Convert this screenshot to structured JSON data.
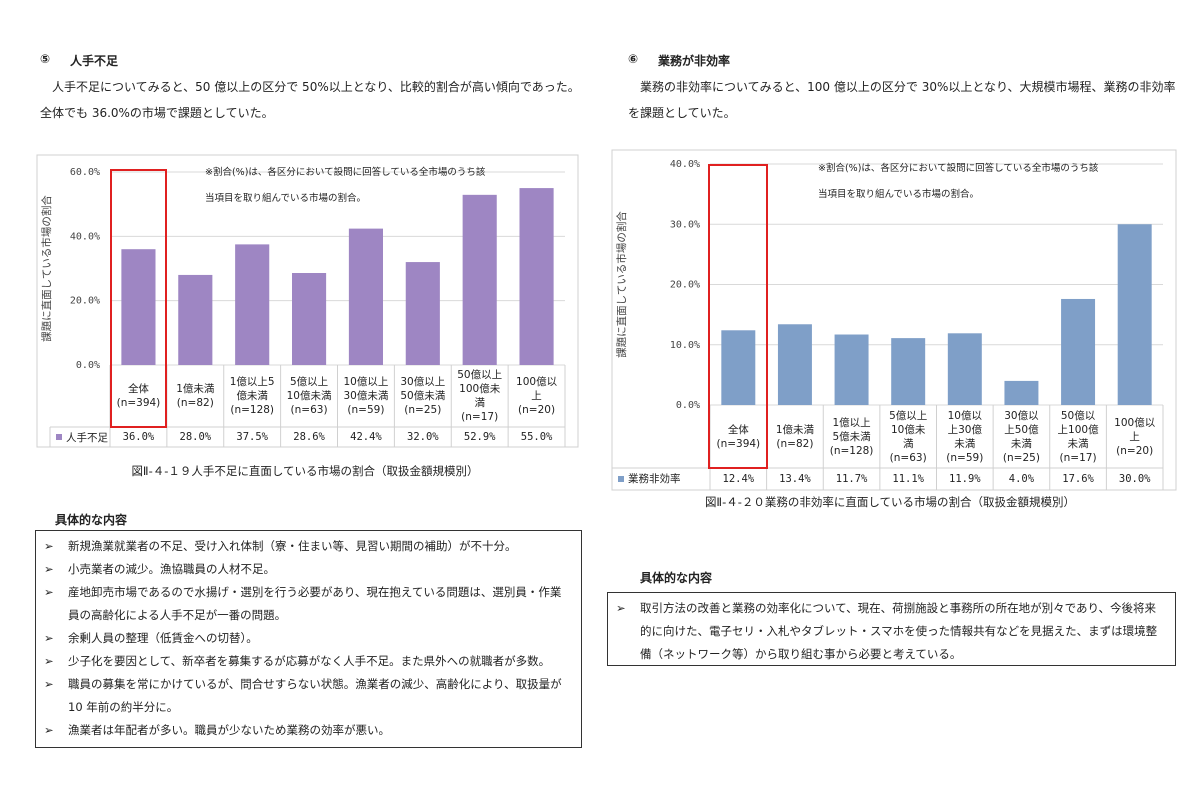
{
  "chart_data": [
    {
      "type": "bar",
      "y_label": "課題に直面している市場の割合",
      "annotation": "※割合(%)は、各区分において設問に回答している全市場のうち該当項目を取り組んでいる市場の割合。",
      "categories": [
        "全体\n(n=394)",
        "1億未満\n(n=82)",
        "1億以上5\n億未満\n(n=128)",
        "5億以上\n10億未満\n(n=63)",
        "10億以上\n30億未満\n(n=59)",
        "30億以上\n50億未満\n(n=25)",
        "50億以上\n100億未\n満\n(n=17)",
        "100億以\n上\n(n=20)"
      ],
      "series": [
        {
          "name": "人手不足",
          "color": "#9e86c3",
          "values": [
            36.0,
            28.0,
            37.5,
            28.6,
            42.4,
            32.0,
            52.9,
            55.0
          ],
          "value_labels": [
            "36.0%",
            "28.0%",
            "37.5%",
            "28.6%",
            "42.4%",
            "32.0%",
            "52.9%",
            "55.0%"
          ]
        }
      ],
      "ylim": [
        0,
        60
      ],
      "yticks": [
        {
          "value": 0,
          "label": "0.0%"
        },
        {
          "value": 20,
          "label": "20.0%"
        },
        {
          "value": 40,
          "label": "40.0%"
        },
        {
          "value": 60,
          "label": "60.0%"
        }
      ],
      "grid": true
    },
    {
      "type": "bar",
      "y_label": "課題に直面している市場の割合",
      "annotation": "※割合(%)は、各区分において設問に回答している全市場のうち該当項目を取り組んでいる市場の割合。",
      "categories": [
        "全体\n(n=394)",
        "1億未満\n(n=82)",
        "1億以上\n5億未満\n(n=128)",
        "5億以上\n10億未\n満\n(n=63)",
        "10億以\n上30億\n未満\n(n=59)",
        "30億以\n上50億\n未満\n(n=25)",
        "50億以\n上100億\n未満\n(n=17)",
        "100億以\n上\n(n=20)"
      ],
      "series": [
        {
          "name": "業務非効率",
          "color": "#7f9fc8",
          "values": [
            12.4,
            13.4,
            11.7,
            11.1,
            11.9,
            4.0,
            17.6,
            30.0
          ],
          "value_labels": [
            "12.4%",
            "13.4%",
            "11.7%",
            "11.1%",
            "11.9%",
            "4.0%",
            "17.6%",
            "30.0%"
          ]
        }
      ],
      "ylim": [
        0,
        40
      ],
      "yticks": [
        {
          "value": 0,
          "label": "0.0%"
        },
        {
          "value": 10,
          "label": "10.0%"
        },
        {
          "value": 20,
          "label": "20.0%"
        },
        {
          "value": 30,
          "label": "30.0%"
        },
        {
          "value": 40,
          "label": "40.0%"
        }
      ],
      "grid": true
    }
  ],
  "sections": [
    {
      "number": "⑤",
      "title": "人手不足",
      "paragraph": "人手不足についてみると、50 億以上の区分で 50%以上となり、比較的割合が高い傾向であった。全体でも 36.0%の市場で課題としていた。",
      "caption": "図Ⅱ-４-１９人手不足に直面している市場の割合（取扱金額規模別）",
      "list_title": "具体的な内容",
      "items": [
        "新規漁業就業者の不足、受け入れ体制（寮・住まい等、見習い期間の補助）が不十分。",
        "小売業者の減少。漁協職員の人材不足。",
        "産地卸売市場であるので水揚げ・選別を行う必要があり、現在抱えている問題は、選別員・作業員の高齢化による人手不足が一番の問題。",
        "余剰人員の整理（低賃金への切替）。",
        "少子化を要因として、新卒者を募集するが応募がなく人手不足。また県外への就職者が多数。",
        "職員の募集を常にかけているが、問合せすらない状態。漁業者の減少、高齢化により、取扱量が 10 年前の約半分に。",
        "漁業者は年配者が多い。職員が少ないため業務の効率が悪い。"
      ]
    },
    {
      "number": "⑥",
      "title": "業務が非効率",
      "paragraph": "業務の非効率についてみると、100 億以上の区分で 30%以上となり、大規模市場程、業務の非効率を課題としていた。",
      "caption": "図Ⅱ-４-２０業務の非効率に直面している市場の割合（取扱金額規模別）",
      "list_title": "具体的な内容",
      "items": [
        "取引方法の改善と業務の効率化について、現在、荷捌施設と事務所の所在地が別々であり、今後将来的に向けた、電子セリ・入札やタブレット・スマホを使った情報共有などを見据えた、まずは環境整備（ネットワーク等）から取り組む事から必要と考えている。"
      ]
    }
  ]
}
